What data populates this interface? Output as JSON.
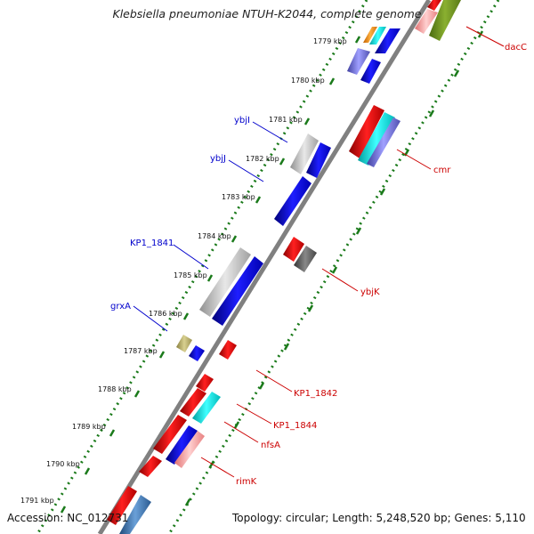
{
  "header": {
    "title": "Klebsiella pneumoniae NTUH-K2044, complete genome"
  },
  "footer": {
    "accession": "Accession: NC_012731",
    "topology": "Topology: circular; Length: 5,248,520 bp; Genes: 5,110"
  },
  "ruler": [
    "1779 kbp",
    "1780 kbp",
    "1781 kbp",
    "1782 kbp",
    "1783 kbp",
    "1784 kbp",
    "1785 kbp",
    "1786 kbp",
    "1787 kbp",
    "1788 kbp",
    "1789 kbp",
    "1790 kbp",
    "1791 kbp"
  ],
  "genes_left": [
    "ybjI",
    "ybjJ",
    "KP1_1841",
    "grxA"
  ],
  "genes_right": [
    "dacC",
    "cmr",
    "ybjK",
    "KP1_1842",
    "KP1_1844",
    "nfsA",
    "rimK"
  ],
  "colors": {
    "left_label": "#0000cc",
    "right_label": "#cc0000",
    "dotted_track": "#1a7a1a",
    "backbone": "#808080"
  }
}
